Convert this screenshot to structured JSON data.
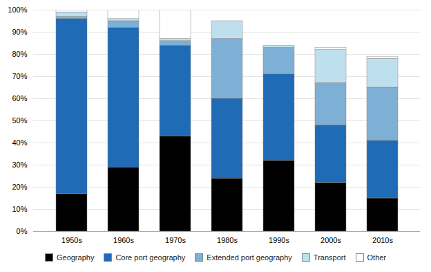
{
  "chart_data": {
    "type": "bar",
    "stacked": true,
    "categories": [
      "1950s",
      "1960s",
      "1970s",
      "1980s",
      "1990s",
      "2000s",
      "2010s"
    ],
    "series": [
      {
        "name": "Geography",
        "color": "#000000",
        "values": [
          17,
          29,
          43,
          24,
          32,
          22,
          15
        ]
      },
      {
        "name": "Core port geography",
        "color": "#1F6BB5",
        "values": [
          79,
          63,
          41,
          36,
          39,
          26,
          26
        ]
      },
      {
        "name": "Extended port geography",
        "color": "#7EB0D5",
        "values": [
          1,
          3,
          2,
          27,
          12,
          19,
          24
        ]
      },
      {
        "name": "Transport",
        "color": "#BEE0EE",
        "values": [
          2,
          1,
          1,
          8,
          1,
          15,
          13
        ]
      },
      {
        "name": "Other",
        "color": "#FFFFFF",
        "values": [
          1,
          4,
          13,
          0,
          0,
          1,
          1
        ]
      }
    ],
    "ylim": [
      0,
      100
    ],
    "yticks": [
      {
        "value": 0,
        "label": "0%"
      },
      {
        "value": 10,
        "label": "10%"
      },
      {
        "value": 20,
        "label": "20%"
      },
      {
        "value": 30,
        "label": "30%"
      },
      {
        "value": 40,
        "label": "40%"
      },
      {
        "value": 50,
        "label": "50%"
      },
      {
        "value": 60,
        "label": "60%"
      },
      {
        "value": 70,
        "label": "70%"
      },
      {
        "value": 80,
        "label": "80%"
      },
      {
        "value": 90,
        "label": "90%"
      },
      {
        "value": 100,
        "label": "100%"
      }
    ],
    "grid": true,
    "legend": "bottom"
  }
}
